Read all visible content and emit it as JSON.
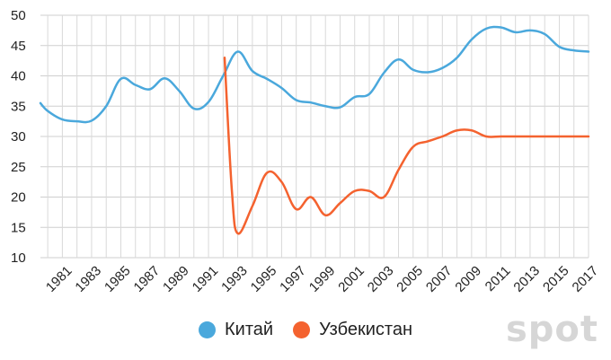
{
  "chart_data": {
    "type": "line",
    "title": "",
    "xlabel": "",
    "ylabel": "",
    "xlim": [
      1979.5,
      2017
    ],
    "ylim": [
      10,
      50
    ],
    "y_ticks": [
      10,
      15,
      20,
      25,
      30,
      35,
      40,
      45,
      50
    ],
    "x_tick_labels": [
      "1981",
      "1983",
      "1985",
      "1987",
      "1989",
      "1991",
      "1993",
      "1995",
      "1997",
      "1999",
      "2001",
      "2003",
      "2005",
      "2007",
      "2009",
      "2011",
      "2013",
      "2015",
      "2017"
    ],
    "grid": true,
    "legend_position": "bottom",
    "series": [
      {
        "name": "Китай",
        "color": "#4aa8dc",
        "x": [
          1979.5,
          1980,
          1981,
          1982,
          1983,
          1984,
          1985,
          1986,
          1987,
          1988,
          1989,
          1990,
          1991,
          1992,
          1993,
          1994,
          1995,
          1996,
          1997,
          1998,
          1999,
          2000,
          2001,
          2002,
          2003,
          2004,
          2005,
          2006,
          2007,
          2008,
          2009,
          2010,
          2011,
          2012,
          2013,
          2014,
          2015,
          2016,
          2017
        ],
        "y": [
          35.5,
          34.2,
          32.8,
          32.5,
          32.6,
          35.0,
          39.5,
          38.5,
          37.8,
          39.6,
          37.5,
          34.6,
          35.7,
          40.0,
          44.0,
          40.8,
          39.5,
          38.0,
          36.0,
          35.6,
          35.0,
          34.8,
          36.5,
          37.0,
          40.5,
          42.7,
          41.0,
          40.6,
          41.3,
          43.0,
          46.0,
          47.8,
          48.0,
          47.2,
          47.5,
          46.9,
          44.8,
          44.2,
          44.0
        ]
      },
      {
        "name": "Узбекистан",
        "color": "#f4622f",
        "x": [
          1992.1,
          1992.6,
          1993,
          1994,
          1995,
          1996,
          1997,
          1998,
          1999,
          2000,
          2001,
          2002,
          2003,
          2004,
          2005,
          2006,
          2007,
          2008,
          2009,
          2010,
          2011,
          2012,
          2013,
          2014,
          2015,
          2016,
          2017
        ],
        "y": [
          43.0,
          21.0,
          14.0,
          18.5,
          24.0,
          22.5,
          18.0,
          20.0,
          17.0,
          19.0,
          21.0,
          21.0,
          20.0,
          24.5,
          28.3,
          29.2,
          30.0,
          31.0,
          31.0,
          30.0,
          30.0,
          30.0,
          30.0,
          30.0,
          30.0,
          30.0,
          30.0
        ]
      }
    ]
  },
  "watermark": "spot"
}
